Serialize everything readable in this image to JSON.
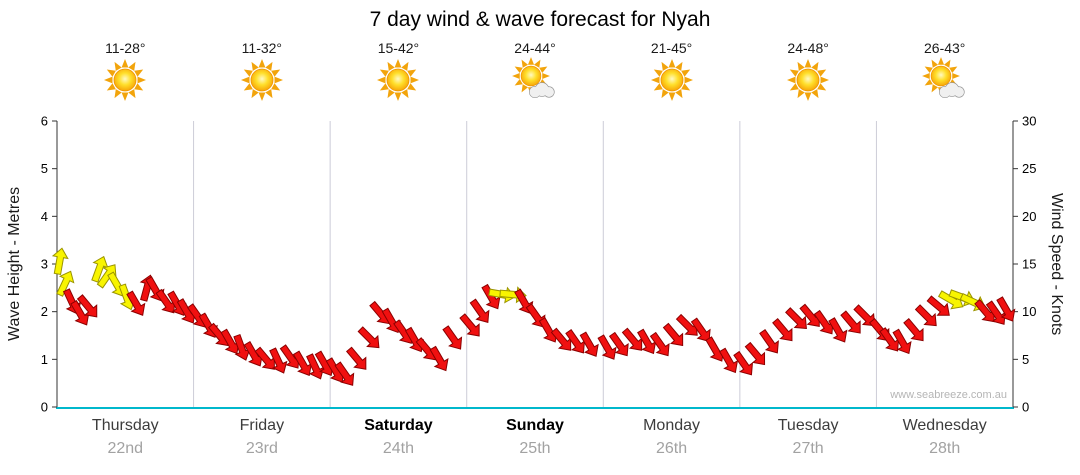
{
  "title": "7 day wind & wave forecast for Nyah",
  "watermark": "www.seabreeze.com.au",
  "colors": {
    "red": "#f01010",
    "red_outline": "#8b0000",
    "yellow": "#f8f400",
    "yellow_outline": "#9a9400",
    "grid": "#ccccd8",
    "axis": "#333333",
    "axis_bottom": "#00b8cc",
    "tick_text": "#000000",
    "watermark_text": "#b5b5b5"
  },
  "chart_data": {
    "type": "wind-arrow-forecast",
    "title": "7 day wind & wave forecast for Nyah",
    "left_axis": {
      "label": "Wave Height - Metres",
      "min": 0,
      "max": 6,
      "ticks": [
        0,
        1,
        2,
        3,
        4,
        5,
        6
      ]
    },
    "right_axis": {
      "label": "Wind Speed - Knots",
      "min": 0,
      "max": 30,
      "ticks": [
        0,
        5,
        10,
        15,
        20,
        25,
        30
      ]
    },
    "days": [
      {
        "name": "Thursday",
        "date": "22nd",
        "temp": "11-28°",
        "icon": "sun",
        "bold": false
      },
      {
        "name": "Friday",
        "date": "23rd",
        "temp": "11-32°",
        "icon": "sun",
        "bold": false
      },
      {
        "name": "Saturday",
        "date": "24th",
        "temp": "15-42°",
        "icon": "sun",
        "bold": true
      },
      {
        "name": "Sunday",
        "date": "25th",
        "temp": "24-44°",
        "icon": "sun-cloud",
        "bold": true
      },
      {
        "name": "Monday",
        "date": "26th",
        "temp": "21-45°",
        "icon": "sun",
        "bold": false
      },
      {
        "name": "Tuesday",
        "date": "27th",
        "temp": "24-48°",
        "icon": "sun",
        "bold": false
      },
      {
        "name": "Wednesday",
        "date": "28th",
        "temp": "26-43°",
        "icon": "sun-cloud",
        "bold": false
      }
    ],
    "arrows_columns": [
      "day_index",
      "position_fraction",
      "wind_knots",
      "direction_deg",
      "color"
    ],
    "arrows": [
      [
        0,
        0.02,
        15.3,
        10,
        "y"
      ],
      [
        0,
        0.06,
        13.0,
        25,
        "y"
      ],
      [
        0,
        0.11,
        11.0,
        155,
        "r"
      ],
      [
        0,
        0.17,
        9.8,
        150,
        "r"
      ],
      [
        0,
        0.23,
        10.5,
        140,
        "r"
      ],
      [
        0,
        0.31,
        14.5,
        20,
        "y"
      ],
      [
        0,
        0.37,
        13.8,
        35,
        "y"
      ],
      [
        0,
        0.44,
        12.8,
        150,
        "y"
      ],
      [
        0,
        0.51,
        11.5,
        160,
        "y"
      ],
      [
        0,
        0.58,
        10.8,
        150,
        "r"
      ],
      [
        0,
        0.66,
        12.5,
        15,
        "r"
      ],
      [
        0,
        0.72,
        12.3,
        150,
        "r"
      ],
      [
        0,
        0.8,
        11.0,
        145,
        "r"
      ],
      [
        0,
        0.88,
        10.8,
        150,
        "r"
      ],
      [
        0,
        0.95,
        10.0,
        150,
        "r"
      ],
      [
        1,
        0.03,
        9.5,
        145,
        "r"
      ],
      [
        1,
        0.11,
        8.5,
        150,
        "r"
      ],
      [
        1,
        0.19,
        7.5,
        140,
        "r"
      ],
      [
        1,
        0.27,
        6.8,
        150,
        "r"
      ],
      [
        1,
        0.35,
        6.2,
        160,
        "r"
      ],
      [
        1,
        0.44,
        5.5,
        150,
        "r"
      ],
      [
        1,
        0.53,
        5.0,
        140,
        "r"
      ],
      [
        1,
        0.62,
        4.8,
        155,
        "r"
      ],
      [
        1,
        0.71,
        5.2,
        145,
        "r"
      ],
      [
        1,
        0.8,
        4.5,
        150,
        "r"
      ],
      [
        1,
        0.89,
        4.2,
        155,
        "r"
      ],
      [
        1,
        0.96,
        4.5,
        150,
        "r"
      ],
      [
        2,
        0.04,
        3.8,
        150,
        "r"
      ],
      [
        2,
        0.11,
        3.4,
        145,
        "r"
      ],
      [
        2,
        0.2,
        5.0,
        140,
        "r"
      ],
      [
        2,
        0.29,
        7.2,
        135,
        "r"
      ],
      [
        2,
        0.37,
        9.8,
        140,
        "r"
      ],
      [
        2,
        0.45,
        9.0,
        150,
        "r"
      ],
      [
        2,
        0.54,
        7.8,
        145,
        "r"
      ],
      [
        2,
        0.62,
        7.0,
        150,
        "r"
      ],
      [
        2,
        0.71,
        6.0,
        140,
        "r"
      ],
      [
        2,
        0.8,
        5.0,
        150,
        "r"
      ],
      [
        2,
        0.9,
        7.2,
        145,
        "r"
      ],
      [
        3,
        0.03,
        8.5,
        140,
        "r"
      ],
      [
        3,
        0.1,
        10.0,
        145,
        "r"
      ],
      [
        3,
        0.18,
        11.5,
        150,
        "r"
      ],
      [
        3,
        0.26,
        11.8,
        100,
        "y"
      ],
      [
        3,
        0.34,
        11.8,
        95,
        "y"
      ],
      [
        3,
        0.42,
        11.0,
        150,
        "r"
      ],
      [
        3,
        0.51,
        9.5,
        145,
        "r"
      ],
      [
        3,
        0.6,
        8.0,
        150,
        "r"
      ],
      [
        3,
        0.7,
        7.0,
        140,
        "r"
      ],
      [
        3,
        0.8,
        6.8,
        145,
        "r"
      ],
      [
        3,
        0.9,
        6.5,
        150,
        "r"
      ],
      [
        4,
        0.03,
        6.2,
        150,
        "r"
      ],
      [
        4,
        0.12,
        6.5,
        145,
        "r"
      ],
      [
        4,
        0.22,
        7.0,
        140,
        "r"
      ],
      [
        4,
        0.32,
        6.8,
        150,
        "r"
      ],
      [
        4,
        0.42,
        6.5,
        145,
        "r"
      ],
      [
        4,
        0.52,
        7.5,
        140,
        "r"
      ],
      [
        4,
        0.62,
        8.5,
        135,
        "r"
      ],
      [
        4,
        0.72,
        8.0,
        145,
        "r"
      ],
      [
        4,
        0.82,
        6.0,
        150,
        "r"
      ],
      [
        4,
        0.92,
        4.8,
        150,
        "r"
      ],
      [
        5,
        0.03,
        4.5,
        145,
        "r"
      ],
      [
        5,
        0.12,
        5.5,
        140,
        "r"
      ],
      [
        5,
        0.22,
        6.8,
        145,
        "r"
      ],
      [
        5,
        0.32,
        8.0,
        140,
        "r"
      ],
      [
        5,
        0.42,
        9.2,
        135,
        "r"
      ],
      [
        5,
        0.52,
        9.5,
        140,
        "r"
      ],
      [
        5,
        0.62,
        8.8,
        145,
        "r"
      ],
      [
        5,
        0.72,
        8.0,
        150,
        "r"
      ],
      [
        5,
        0.82,
        8.8,
        140,
        "r"
      ],
      [
        5,
        0.92,
        9.5,
        135,
        "r"
      ],
      [
        6,
        0.03,
        8.0,
        140,
        "r"
      ],
      [
        6,
        0.1,
        7.0,
        145,
        "r"
      ],
      [
        6,
        0.19,
        6.8,
        150,
        "r"
      ],
      [
        6,
        0.28,
        8.0,
        140,
        "r"
      ],
      [
        6,
        0.37,
        9.5,
        135,
        "r"
      ],
      [
        6,
        0.46,
        10.5,
        130,
        "r"
      ],
      [
        6,
        0.55,
        11.2,
        120,
        "y"
      ],
      [
        6,
        0.63,
        11.5,
        110,
        "y"
      ],
      [
        6,
        0.71,
        11.0,
        115,
        "y"
      ],
      [
        6,
        0.8,
        10.0,
        140,
        "r"
      ],
      [
        6,
        0.88,
        9.8,
        145,
        "r"
      ],
      [
        6,
        0.95,
        10.2,
        150,
        "r"
      ]
    ]
  }
}
